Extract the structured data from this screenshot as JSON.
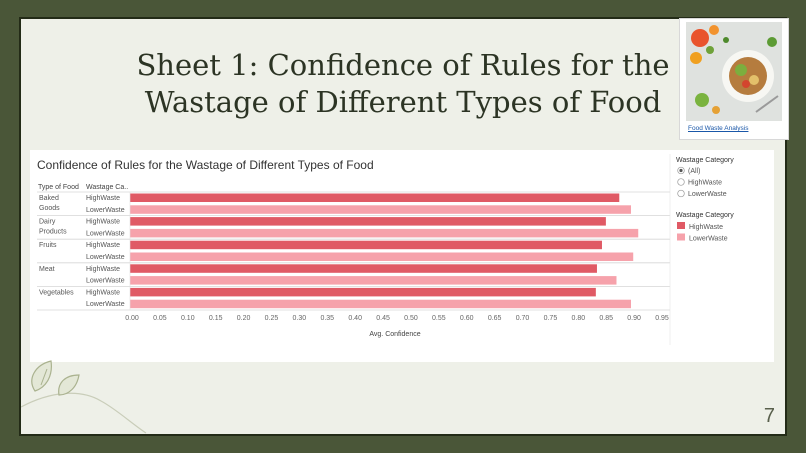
{
  "slide": {
    "title_line1": "Sheet 1: Confidence of Rules for the",
    "title_line2": "Wastage of Different Types of Food",
    "thumbnail_link": "Food Waste Analysis",
    "page_number": "7"
  },
  "chart_data": {
    "type": "bar",
    "orientation": "horizontal",
    "title": "Confidence of Rules for the Wastage of Different Types of Food",
    "row_headers": [
      "Type of Food",
      "Wastage Ca.."
    ],
    "groups": [
      {
        "label": "Baked Goods",
        "bars": [
          {
            "category": "HighWaste",
            "value": 0.877
          },
          {
            "category": "LowerWaste",
            "value": 0.898
          }
        ]
      },
      {
        "label": "Dairy Products",
        "bars": [
          {
            "category": "HighWaste",
            "value": 0.853
          },
          {
            "category": "LowerWaste",
            "value": 0.911
          }
        ]
      },
      {
        "label": "Fruits",
        "bars": [
          {
            "category": "HighWaste",
            "value": 0.846
          },
          {
            "category": "LowerWaste",
            "value": 0.902
          }
        ]
      },
      {
        "label": "Meat",
        "bars": [
          {
            "category": "HighWaste",
            "value": 0.837
          },
          {
            "category": "LowerWaste",
            "value": 0.872
          }
        ]
      },
      {
        "label": "Vegetables",
        "bars": [
          {
            "category": "HighWaste",
            "value": 0.835
          },
          {
            "category": "LowerWaste",
            "value": 0.898
          }
        ]
      }
    ],
    "xlabel": "Avg. Confidence",
    "xlim": [
      0,
      0.95
    ],
    "xticks": [
      "0.00",
      "0.05",
      "0.10",
      "0.15",
      "0.20",
      "0.25",
      "0.30",
      "0.35",
      "0.40",
      "0.45",
      "0.50",
      "0.55",
      "0.60",
      "0.65",
      "0.70",
      "0.75",
      "0.80",
      "0.85",
      "0.90",
      "0.95"
    ],
    "filter": {
      "title": "Wastage Category",
      "options": [
        "(All)",
        "HighWaste",
        "LowerWaste"
      ],
      "selected": "(All)"
    },
    "legend": {
      "title": "Wastage Category",
      "items": [
        {
          "label": "HighWaste",
          "color": "#e05a65"
        },
        {
          "label": "LowerWaste",
          "color": "#f6a2ab"
        }
      ]
    },
    "colors": {
      "HighWaste": "#e05a65",
      "LowerWaste": "#f6a2ab"
    }
  }
}
